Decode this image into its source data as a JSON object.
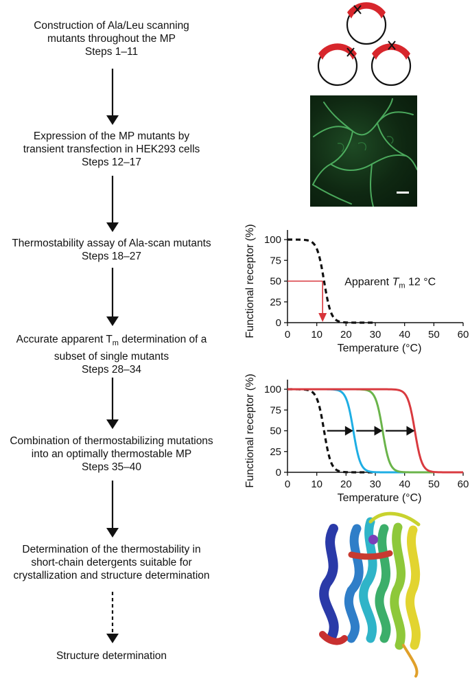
{
  "steps": [
    {
      "lines": [
        "Construction of Ala/Leu scanning",
        "mutants throughout the MP",
        "Steps 1–11"
      ]
    },
    {
      "lines": [
        "Expression of the MP mutants by",
        "transient transfection in HEK293 cells",
        "Steps 12–17"
      ]
    },
    {
      "lines": [
        "Thermostability assay of Ala-scan mutants",
        "Steps 18–27"
      ]
    },
    {
      "lines": [
        "Accurate apparent T",
        "m",
        " determination of a",
        "subset of single mutants",
        "Steps 28–34"
      ]
    },
    {
      "lines": [
        "Combination of thermostabilizing mutations",
        "into an optimally thermostable MP",
        "Steps 35–40"
      ]
    },
    {
      "lines": [
        "Determination of the thermostability in",
        "short-chain detergents suitable for",
        "crystallization and structure determination"
      ]
    },
    {
      "lines": [
        "Structure determination"
      ]
    }
  ],
  "colors": {
    "plasmid_red": "#d7262c",
    "arrow_red": "#d8343a",
    "blue_curve": "#1eaee4",
    "green_curve": "#6ab44a",
    "red_curve": "#d93a3f",
    "black": "#111111"
  },
  "chart_data": [
    {
      "type": "line",
      "xlabel": "Temperature (°C)",
      "ylabel": "Functional receptor (%)",
      "xticks": [
        "0",
        "10",
        "20",
        "30",
        "40",
        "50",
        "60"
      ],
      "yticks": [
        "0",
        "25",
        "50",
        "75",
        "100"
      ],
      "xlim": [
        0,
        60
      ],
      "ylim": [
        0,
        100
      ],
      "annotation": {
        "text": "Apparent ",
        "t": "T",
        "sub": "m",
        "value": " 12 °C"
      },
      "series": [
        {
          "style": "dashed",
          "color": "#111111",
          "tm": 12.5,
          "x_start": 0,
          "x_end": 30
        }
      ],
      "marker": {
        "x": 12,
        "y": 50
      }
    },
    {
      "type": "line",
      "xlabel": "Temperature (°C)",
      "ylabel": "Functional receptor (%)",
      "xticks": [
        "0",
        "10",
        "20",
        "30",
        "40",
        "50",
        "60"
      ],
      "yticks": [
        "0",
        "25",
        "50",
        "75",
        "100"
      ],
      "xlim": [
        0,
        60
      ],
      "ylim": [
        0,
        100
      ],
      "series": [
        {
          "style": "dashed",
          "color": "#111111",
          "tm": 12.5,
          "x_start": 0,
          "x_end": 30
        },
        {
          "style": "solid",
          "color": "#1eaee4",
          "tm": 22.5,
          "x_start": 0,
          "x_end": 40
        },
        {
          "style": "solid",
          "color": "#6ab44a",
          "tm": 32.5,
          "x_start": 0,
          "x_end": 50
        },
        {
          "style": "solid",
          "color": "#d93a3f",
          "tm": 43.5,
          "x_start": 0,
          "x_end": 60
        }
      ],
      "shift_arrows": [
        {
          "from": 13.5,
          "to": 22
        },
        {
          "from": 23.5,
          "to": 32
        },
        {
          "from": 33.5,
          "to": 43
        }
      ]
    }
  ]
}
